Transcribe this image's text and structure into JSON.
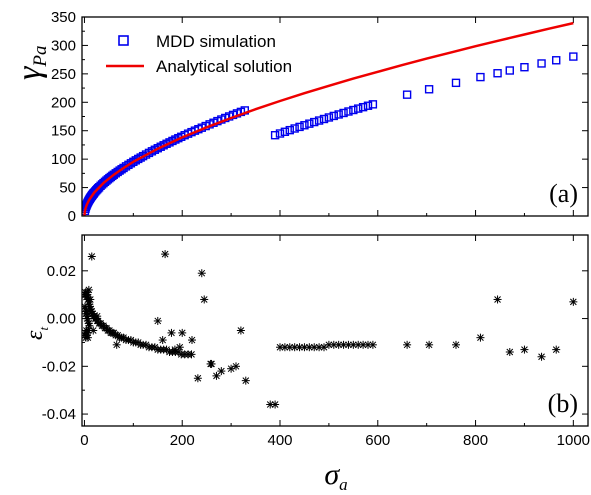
{
  "chart_data": [
    {
      "type": "line",
      "panel_label": "(a)",
      "ylabel_main": "γ",
      "ylabel_sub": "Pa",
      "xlim": [
        -5,
        1030
      ],
      "ylim": [
        0,
        350
      ],
      "yticks": [
        0,
        50,
        100,
        150,
        200,
        250,
        300,
        350
      ],
      "xticks": [
        0,
        200,
        400,
        600,
        800,
        1000
      ],
      "legend_position": "top-left",
      "series": [
        {
          "name": "MDD simulation",
          "kind": "scatter",
          "marker": "open-square",
          "color": "#0000ee",
          "x": [
            1,
            2,
            3,
            4,
            5,
            6,
            7,
            8,
            9,
            10,
            11,
            12,
            13,
            14,
            15,
            16,
            17,
            18,
            19,
            20,
            22,
            24,
            26,
            28,
            30,
            33,
            36,
            39,
            42,
            45,
            48,
            51,
            54,
            57,
            60,
            64,
            68,
            72,
            76,
            80,
            85,
            90,
            95,
            100,
            105,
            110,
            115,
            120,
            126,
            132,
            138,
            144,
            150,
            156,
            162,
            168,
            174,
            180,
            186,
            192,
            198,
            205,
            212,
            219,
            226,
            233,
            240,
            248,
            256,
            264,
            272,
            280,
            288,
            296,
            304,
            312,
            320,
            328,
            390,
            400,
            410,
            420,
            430,
            440,
            450,
            460,
            470,
            480,
            490,
            500,
            510,
            520,
            530,
            540,
            550,
            560,
            570,
            580,
            590,
            660,
            705,
            760,
            810,
            845,
            870,
            900,
            935,
            965,
            1000
          ],
          "y": [
            8.9,
            12.7,
            15.6,
            18.1,
            20.3,
            22.3,
            24.1,
            25.8,
            27.4,
            28.9,
            30.3,
            31.7,
            33.0,
            34.3,
            35.5,
            36.7,
            37.8,
            39.0,
            40.0,
            41.1,
            43.1,
            45.1,
            46.9,
            48.8,
            50.5,
            53.1,
            55.5,
            57.8,
            60.1,
            62.3,
            64.5,
            66.6,
            68.6,
            70.6,
            72.6,
            75.1,
            77.5,
            79.9,
            82.2,
            84.5,
            87.3,
            90.0,
            92.7,
            95.3,
            97.9,
            100.4,
            102.8,
            105.3,
            108.1,
            111.0,
            113.8,
            116.5,
            119.2,
            121.8,
            124.4,
            127.0,
            129.5,
            132.0,
            134.5,
            136.9,
            139.3,
            142.1,
            144.8,
            147.5,
            150.1,
            152.7,
            155.3,
            158.2,
            161.2,
            164.0,
            166.9,
            169.7,
            172.4,
            175.1,
            177.8,
            180.5,
            183.1,
            185.7,
            142.1,
            145.1,
            148.1,
            151.0,
            153.9,
            156.7,
            159.6,
            162.4,
            165.2,
            167.9,
            170.6,
            173.3,
            176.0,
            178.6,
            181.2,
            183.8,
            186.4,
            188.9,
            191.4,
            193.9,
            196.4,
            213.4,
            222.9,
            234.2,
            244.3,
            251.1,
            255.9,
            261.7,
            268.3,
            273.9,
            280.4
          ]
        },
        {
          "name": "Analytical solution",
          "kind": "line",
          "color": "#ee0000",
          "x": [
            0,
            1,
            2,
            5,
            10,
            20,
            40,
            60,
            80,
            100,
            150,
            200,
            250,
            300,
            350,
            400,
            450,
            500,
            550,
            600,
            650,
            700,
            750,
            800,
            850,
            900,
            950,
            1000
          ],
          "y": [
            0,
            8.9,
            12.7,
            20.3,
            28.9,
            41.1,
            58.9,
            72.6,
            84.5,
            95.3,
            118.3,
            138.2,
            156.0,
            172.4,
            187.8,
            202.2,
            215.9,
            229.0,
            241.6,
            253.7,
            265.4,
            276.8,
            287.8,
            298.6,
            309.1,
            319.3,
            329.4,
            339.2
          ]
        }
      ]
    },
    {
      "type": "scatter",
      "panel_label": "(b)",
      "ylabel_main": "ε",
      "ylabel_sub": "t",
      "xlabel_main": "σ",
      "xlabel_sub": "a",
      "xlim": [
        -5,
        1030
      ],
      "ylim": [
        -0.045,
        0.035
      ],
      "yticks": [
        -0.04,
        -0.02,
        0.0,
        0.02
      ],
      "ytick_labels": [
        "-0.04",
        "-0.02",
        "0.00",
        "0.02"
      ],
      "xticks": [
        0,
        200,
        400,
        600,
        800,
        1000
      ],
      "xtick_labels": [
        "0",
        "200",
        "400",
        "600",
        "800",
        "1000"
      ],
      "series": [
        {
          "name": "",
          "marker": "asterisk",
          "color": "#000000",
          "x": [
            1,
            1,
            1,
            2,
            2,
            2,
            3,
            3,
            3,
            4,
            4,
            4,
            5,
            5,
            5,
            6,
            6,
            6,
            7,
            7,
            7,
            8,
            8,
            8,
            9,
            9,
            10,
            10,
            11,
            12,
            13,
            14,
            15,
            16,
            17,
            18,
            19,
            20,
            22,
            24,
            26,
            28,
            30,
            33,
            36,
            39,
            42,
            45,
            48,
            51,
            54,
            57,
            60,
            64,
            68,
            72,
            76,
            80,
            85,
            90,
            95,
            100,
            105,
            110,
            115,
            120,
            126,
            132,
            138,
            144,
            150,
            156,
            162,
            168,
            174,
            180,
            186,
            192,
            198,
            205,
            212,
            219,
            15,
            66,
            150,
            165,
            178,
            195,
            240,
            245,
            260,
            280,
            300,
            320,
            330,
            390,
            400,
            410,
            420,
            430,
            440,
            450,
            460,
            470,
            480,
            490,
            500,
            510,
            520,
            530,
            540,
            550,
            560,
            570,
            580,
            590,
            660,
            705,
            760,
            810,
            845,
            870,
            900,
            935,
            965,
            1000,
            9,
            12,
            18,
            26,
            160,
            200,
            185,
            220,
            232,
            258,
            270,
            310,
            380
          ],
          "y": [
            0.01,
            0.005,
            -0.007,
            0.011,
            0.004,
            -0.006,
            0.01,
            0.002,
            -0.008,
            0.009,
            0.003,
            -0.005,
            0.011,
            0.001,
            -0.007,
            0.01,
            0.0,
            -0.006,
            0.009,
            -0.001,
            -0.008,
            0.008,
            0.002,
            -0.005,
            0.007,
            -0.002,
            0.006,
            -0.003,
            0.005,
            0.004,
            0.004,
            0.003,
            0.003,
            0.002,
            0.002,
            0.001,
            0.001,
            0.001,
            0.0,
            0.0,
            -0.001,
            -0.001,
            -0.002,
            -0.002,
            -0.003,
            -0.003,
            -0.004,
            -0.004,
            -0.005,
            -0.005,
            -0.006,
            -0.006,
            -0.006,
            -0.007,
            -0.007,
            -0.008,
            -0.008,
            -0.008,
            -0.009,
            -0.009,
            -0.009,
            -0.01,
            -0.01,
            -0.01,
            -0.011,
            -0.011,
            -0.011,
            -0.012,
            -0.012,
            -0.012,
            -0.013,
            -0.013,
            -0.013,
            -0.013,
            -0.014,
            -0.014,
            -0.014,
            -0.014,
            -0.015,
            -0.015,
            -0.015,
            -0.015,
            0.026,
            -0.011,
            -0.001,
            0.027,
            -0.006,
            -0.012,
            0.019,
            0.008,
            -0.019,
            -0.022,
            -0.021,
            -0.005,
            -0.026,
            -0.036,
            -0.012,
            -0.012,
            -0.012,
            -0.012,
            -0.012,
            -0.012,
            -0.012,
            -0.012,
            -0.012,
            -0.012,
            -0.011,
            -0.011,
            -0.011,
            -0.011,
            -0.011,
            -0.011,
            -0.011,
            -0.011,
            -0.011,
            -0.011,
            -0.011,
            -0.011,
            -0.011,
            -0.008,
            0.008,
            -0.014,
            -0.013,
            -0.016,
            -0.013,
            0.007,
            0.012,
            0.008,
            -0.005,
            0.001,
            -0.009,
            -0.006,
            -0.013,
            -0.009,
            -0.025,
            -0.019,
            -0.024,
            -0.02,
            -0.036
          ]
        }
      ]
    }
  ],
  "legend": {
    "items": [
      {
        "label": "MDD simulation"
      },
      {
        "label": "Analytical solution"
      }
    ]
  }
}
